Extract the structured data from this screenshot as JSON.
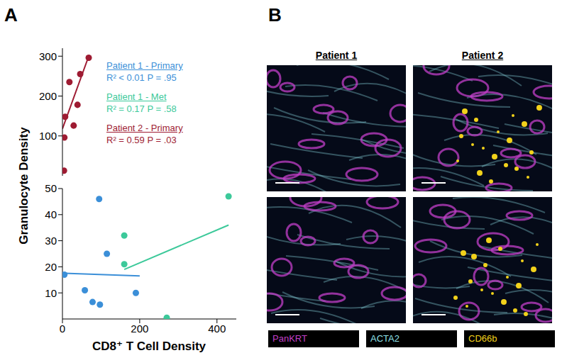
{
  "panel_a_label": "A",
  "y_label": "Granulocyte Density",
  "x_label": "CD8⁺ T Cell Density",
  "chart_data": [
    {
      "type": "scatter",
      "xlim": [
        0,
        450
      ],
      "xticks": [
        0,
        200,
        400
      ],
      "ylim": [
        0,
        320
      ],
      "yticks": [
        100,
        200,
        300
      ],
      "tick_labels": "y",
      "series": [
        {
          "name": "Patient 2 - Primary",
          "color": "#9e1b32",
          "marker": "circle",
          "x": [
            4,
            5,
            7,
            18,
            29,
            39,
            46,
            68
          ],
          "values": [
            13,
            96,
            148,
            235,
            126,
            178,
            255,
            296
          ],
          "fit": [
            [
              0,
              118
            ],
            [
              68,
              300
            ]
          ],
          "annotation": "R² = 0.59 P = .03"
        }
      ]
    },
    {
      "type": "scatter",
      "xlim": [
        0,
        450
      ],
      "xticks": [
        0,
        200,
        400
      ],
      "ylim": [
        0,
        50
      ],
      "yticks": [
        10,
        20,
        30,
        40,
        50
      ],
      "series": [
        {
          "name": "Patient 1 - Primary",
          "color": "#3b8fd8",
          "marker": "circle",
          "x": [
            5,
            58,
            78,
            97,
            95,
            115,
            190
          ],
          "values": [
            17,
            11,
            6.5,
            5.5,
            46,
            25,
            10
          ],
          "fit": [
            [
              5,
              17.5
            ],
            [
              200,
              16.5
            ]
          ],
          "annotation": "R² < 0.01 P = .95"
        },
        {
          "name": "Patient 1 - Met",
          "color": "#3cc99a",
          "marker": "circle",
          "x": [
            160,
            160,
            270,
            430
          ],
          "values": [
            32,
            21,
            0.5,
            47
          ],
          "fit": [
            [
              160,
              19
            ],
            [
              430,
              36
            ]
          ],
          "annotation": "R² = 0.17 P = .58"
        }
      ]
    }
  ],
  "panel_b": {
    "label": "B",
    "columns": [
      "Patient 1",
      "Patient 2"
    ],
    "markers": [
      {
        "name": "PanKRT",
        "color": "#c23fc8"
      },
      {
        "name": "ACTA2",
        "color": "#8fe0e8"
      },
      {
        "name": "CD66b",
        "color": "#f2d21b"
      }
    ]
  }
}
